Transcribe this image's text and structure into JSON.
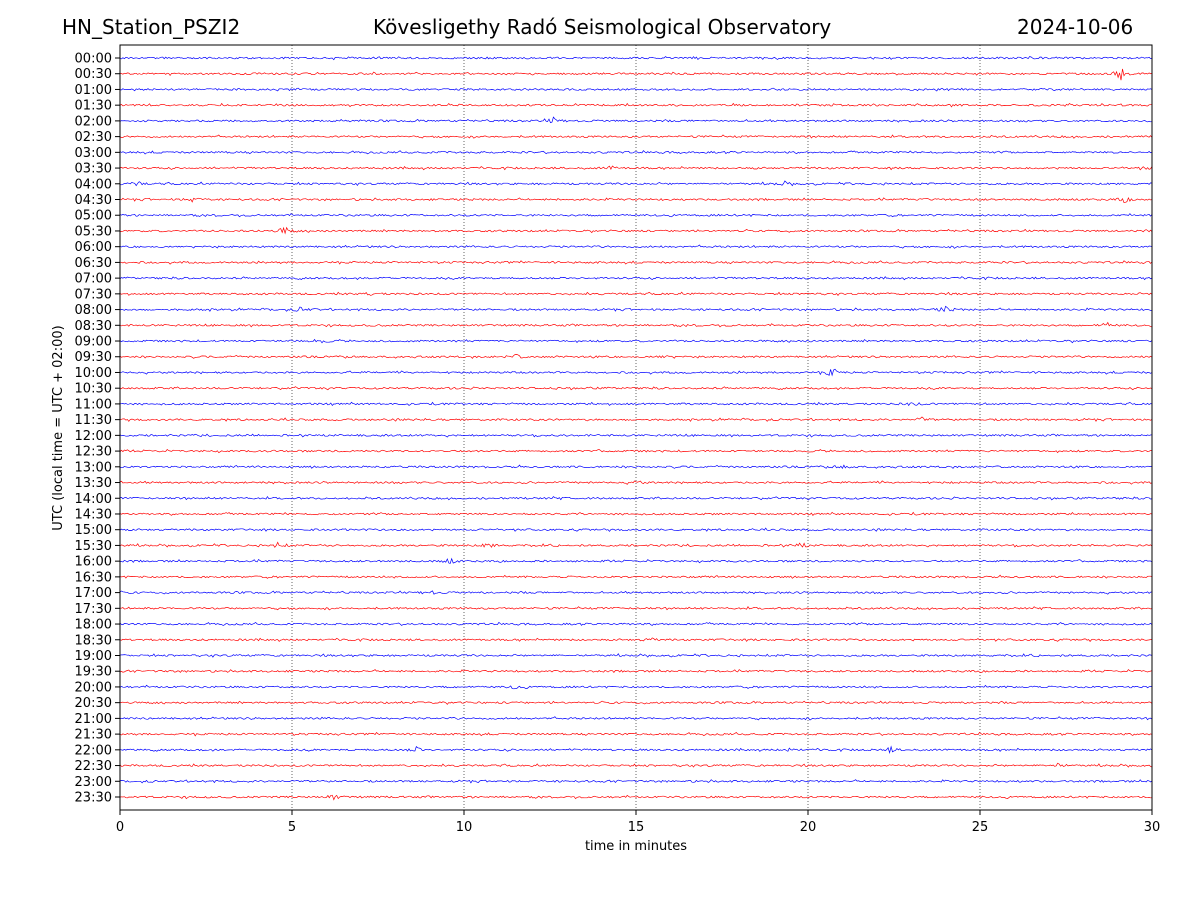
{
  "header": {
    "station": "HN_Station_PSZI2",
    "observatory": "Kövesligethy Radó Seismological Observatory",
    "date": "2024-10-06"
  },
  "chart_data": {
    "type": "line",
    "title": "Kövesligethy Radó Seismological Observatory",
    "xlabel": "time in minutes",
    "ylabel": "UTC (local time = UTC + 02:00)",
    "xlim": [
      0,
      30
    ],
    "xticks": [
      0,
      5,
      10,
      15,
      20,
      25,
      30
    ],
    "grid": "vertical dotted at x ticks",
    "colors": [
      "#0000ff",
      "#ff0000"
    ],
    "rows": [
      "00:00",
      "00:30",
      "01:00",
      "01:30",
      "02:00",
      "02:30",
      "03:00",
      "03:30",
      "04:00",
      "04:30",
      "05:00",
      "05:30",
      "06:00",
      "06:30",
      "07:00",
      "07:30",
      "08:00",
      "08:30",
      "09:00",
      "09:30",
      "10:00",
      "10:30",
      "11:00",
      "11:30",
      "12:00",
      "12:30",
      "13:00",
      "13:30",
      "14:00",
      "14:30",
      "15:00",
      "15:30",
      "16:00",
      "16:30",
      "17:00",
      "17:30",
      "18:00",
      "18:30",
      "19:00",
      "19:30",
      "20:00",
      "20:30",
      "21:00",
      "21:30",
      "22:00",
      "22:30",
      "23:00",
      "23:30"
    ],
    "events": [
      {
        "row": "00:30",
        "minute": 29.1,
        "amplitude": 6
      },
      {
        "row": "02:00",
        "minute": 12.6,
        "amplitude": 3
      },
      {
        "row": "03:30",
        "minute": 14.3,
        "amplitude": 2
      },
      {
        "row": "03:30",
        "minute": 29.9,
        "amplitude": 2
      },
      {
        "row": "04:00",
        "minute": 0.5,
        "amplitude": 2
      },
      {
        "row": "04:00",
        "minute": 19.3,
        "amplitude": 2
      },
      {
        "row": "04:30",
        "minute": 2.1,
        "amplitude": 2
      },
      {
        "row": "04:30",
        "minute": 29.2,
        "amplitude": 2.5
      },
      {
        "row": "05:30",
        "minute": 4.8,
        "amplitude": 4
      },
      {
        "row": "07:30",
        "minute": 7.3,
        "amplitude": 2
      },
      {
        "row": "08:00",
        "minute": 5.3,
        "amplitude": 3
      },
      {
        "row": "08:00",
        "minute": 24.0,
        "amplitude": 3
      },
      {
        "row": "08:30",
        "minute": 28.7,
        "amplitude": 2.5
      },
      {
        "row": "09:00",
        "minute": 5.8,
        "amplitude": 2
      },
      {
        "row": "09:30",
        "minute": 11.5,
        "amplitude": 2
      },
      {
        "row": "09:30",
        "minute": 15.8,
        "amplitude": 2
      },
      {
        "row": "10:00",
        "minute": 20.7,
        "amplitude": 5
      },
      {
        "row": "11:00",
        "minute": 23.0,
        "amplitude": 2.5
      },
      {
        "row": "11:30",
        "minute": 23.3,
        "amplitude": 2
      },
      {
        "row": "13:00",
        "minute": 21.0,
        "amplitude": 2
      },
      {
        "row": "13:30",
        "minute": 15.0,
        "amplitude": 2
      },
      {
        "row": "15:30",
        "minute": 4.6,
        "amplitude": 2.5
      },
      {
        "row": "15:30",
        "minute": 10.7,
        "amplitude": 2.5
      },
      {
        "row": "15:30",
        "minute": 19.8,
        "amplitude": 2.5
      },
      {
        "row": "16:00",
        "minute": 9.6,
        "amplitude": 2.5
      },
      {
        "row": "17:00",
        "minute": 9.0,
        "amplitude": 2
      },
      {
        "row": "18:30",
        "minute": 15.4,
        "amplitude": 2
      },
      {
        "row": "20:00",
        "minute": 11.5,
        "amplitude": 2
      },
      {
        "row": "22:00",
        "minute": 8.6,
        "amplitude": 3
      },
      {
        "row": "22:00",
        "minute": 19.5,
        "amplitude": 2
      },
      {
        "row": "22:00",
        "minute": 22.4,
        "amplitude": 2.5
      },
      {
        "row": "22:30",
        "minute": 27.2,
        "amplitude": 3
      },
      {
        "row": "23:30",
        "minute": 6.2,
        "amplitude": 2.5
      }
    ]
  }
}
